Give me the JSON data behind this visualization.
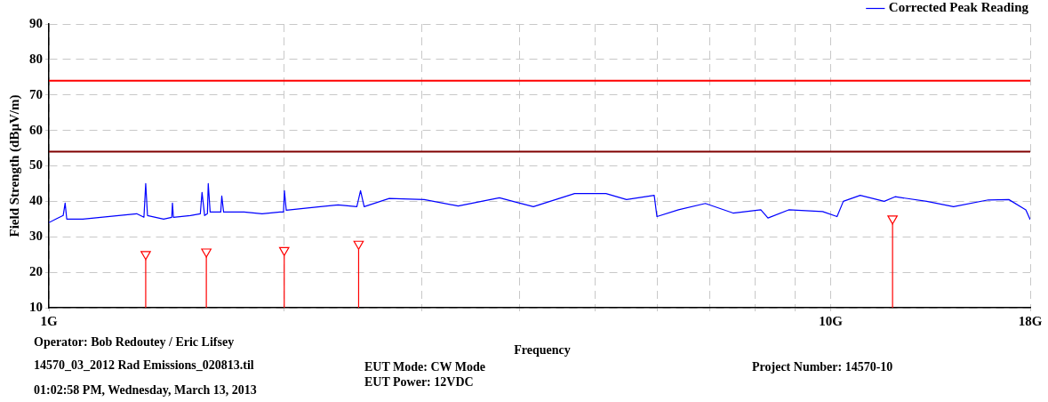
{
  "chart_data": {
    "type": "line",
    "xlabel": "Frequency",
    "ylabel": "Field Strength (dBµV/m)",
    "log": "x",
    "grid": true,
    "legend": "top right",
    "xlim": [
      1,
      18
    ],
    "ylim": [
      10,
      90
    ],
    "xticks": [
      {
        "value": 1,
        "label": "1G"
      },
      {
        "value": 2,
        "label": null
      },
      {
        "value": 3,
        "label": null
      },
      {
        "value": 4,
        "label": null
      },
      {
        "value": 5,
        "label": null
      },
      {
        "value": 6,
        "label": null
      },
      {
        "value": 7,
        "label": null
      },
      {
        "value": 8,
        "label": null
      },
      {
        "value": 9,
        "label": null
      },
      {
        "value": 10,
        "label": "10G"
      },
      {
        "value": 18,
        "label": "18G"
      }
    ],
    "yticks": [
      10,
      20,
      30,
      40,
      50,
      60,
      70,
      80,
      90
    ],
    "ref_lines": [
      {
        "axis": "y",
        "value": 74,
        "color": "#ff0000"
      },
      {
        "axis": "y",
        "value": 54,
        "color": "#800000"
      }
    ],
    "series": [
      {
        "name": "Corrected Peak Reading",
        "color": "#0000ff",
        "marker": "none",
        "x": [
          1.0,
          1.021,
          1.043,
          1.049,
          1.054,
          1.105,
          1.165,
          1.228,
          1.295,
          1.323,
          1.33,
          1.337,
          1.402,
          1.436,
          1.439,
          1.443,
          1.517,
          1.562,
          1.57,
          1.582,
          1.595,
          1.599,
          1.608,
          1.659,
          1.664,
          1.673,
          1.777,
          1.874,
          1.975,
          1.996,
          2.001,
          2.012,
          2.115,
          2.224,
          2.344,
          2.477,
          2.504,
          2.531,
          2.725,
          3.02,
          3.338,
          3.77,
          3.921,
          4.166,
          4.704,
          5.159,
          5.481,
          5.947,
          5.995,
          6.388,
          6.914,
          7.502,
          8.141,
          8.314,
          8.837,
          9.766,
          10.19,
          10.38,
          10.91,
          11.71,
          12.09,
          13.27,
          14.36,
          15.91,
          16.9,
          17.77,
          18.0
        ],
        "values": [
          34,
          35,
          36,
          39.5,
          35,
          35,
          35.5,
          36,
          36.5,
          35.5,
          45,
          36,
          35,
          35.5,
          39.5,
          35.5,
          36,
          36.5,
          42.5,
          36,
          36.5,
          45,
          37,
          37,
          41.5,
          37,
          37,
          36.5,
          37,
          37,
          43,
          37.5,
          38,
          38.5,
          39,
          38.5,
          43,
          38.5,
          40.8,
          40.5,
          38.7,
          41,
          40,
          38.5,
          42.2,
          42.2,
          40.5,
          41.7,
          35.7,
          37.6,
          39.4,
          36.7,
          37.6,
          35.3,
          37.6,
          37.1,
          35.7,
          40,
          41.7,
          40,
          41.3,
          40,
          38.5,
          40.4,
          40.5,
          37.6,
          34.8
        ]
      },
      {
        "type": "lollipop",
        "color": "#ff0000",
        "marker": "triangle",
        "x": [
          1.33,
          1.59,
          2.0,
          2.49,
          12.0
        ],
        "values": [
          25.1,
          25.8,
          26.2,
          28.0,
          35.1
        ]
      }
    ],
    "annotations": [
      "Operator: Bob Redoutey / Eric Lifsey",
      "14570_03_2012 Rad Emissions_020813.til",
      "01:02:58 PM, Wednesday, March 13, 2013",
      "EUT Mode: CW Mode",
      "EUT Power: 12VDC",
      "Project Number: 14570-10"
    ]
  }
}
